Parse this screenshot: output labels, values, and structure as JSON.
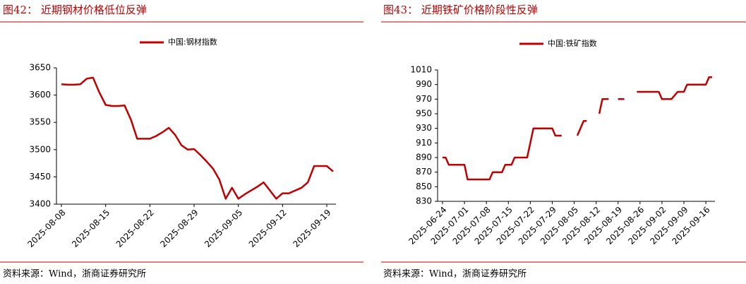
{
  "chart_data": [
    {
      "type": "line",
      "title": "图42：  近期钢材价格低位反弹",
      "source": "资料来源：Wind，浙商证券研究所",
      "x": [
        "2025-08-08",
        "2025-08-09",
        "2025-08-10",
        "2025-08-11",
        "2025-08-12",
        "2025-08-13",
        "2025-08-14",
        "2025-08-15",
        "2025-08-16",
        "2025-08-17",
        "2025-08-18",
        "2025-08-19",
        "2025-08-20",
        "2025-08-21",
        "2025-08-22",
        "2025-08-23",
        "2025-08-24",
        "2025-08-25",
        "2025-08-26",
        "2025-08-27",
        "2025-08-28",
        "2025-08-29",
        "2025-08-30",
        "2025-08-31",
        "2025-09-01",
        "2025-09-02",
        "2025-09-03",
        "2025-09-04",
        "2025-09-05",
        "2025-09-06",
        "2025-09-07",
        "2025-09-08",
        "2025-09-09",
        "2025-09-10",
        "2025-09-11",
        "2025-09-12",
        "2025-09-13",
        "2025-09-14",
        "2025-09-15",
        "2025-09-16",
        "2025-09-17",
        "2025-09-18",
        "2025-09-19",
        "2025-09-20"
      ],
      "series": [
        {
          "name": "中国:钢材指数",
          "color": "#c00000",
          "values": [
            3620,
            3619,
            3619,
            3620,
            3630,
            3632,
            3605,
            3582,
            3580,
            3580,
            3581,
            3555,
            3520,
            3520,
            3520,
            3525,
            3532,
            3540,
            3527,
            3508,
            3500,
            3501,
            3490,
            3478,
            3465,
            3445,
            3410,
            3430,
            3410,
            3418,
            3425,
            3432,
            3440,
            3425,
            3410,
            3420,
            3420,
            3425,
            3430,
            3440,
            3470,
            3470,
            3470,
            3460
          ]
        }
      ],
      "xlim": [
        "2025-08-08",
        "2025-09-20"
      ],
      "xticks": [
        "2025-08-08",
        "2025-08-15",
        "2025-08-22",
        "2025-08-29",
        "2025-09-05",
        "2025-09-12",
        "2025-09-19"
      ],
      "ylim": [
        3400,
        3650
      ],
      "yticks": [
        3400,
        3450,
        3500,
        3550,
        3600,
        3650
      ],
      "legend": "top"
    },
    {
      "type": "line",
      "title": "图43：  近期铁矿价格阶段性反弹",
      "source": "资料来源：Wind，浙商证券研究所",
      "x": [
        "2025-06-24",
        "2025-06-25",
        "2025-06-26",
        "2025-06-27",
        "2025-06-28",
        "2025-06-29",
        "2025-06-30",
        "2025-07-01",
        "2025-07-02",
        "2025-07-03",
        "2025-07-04",
        "2025-07-05",
        "2025-07-06",
        "2025-07-07",
        "2025-07-08",
        "2025-07-09",
        "2025-07-10",
        "2025-07-11",
        "2025-07-12",
        "2025-07-13",
        "2025-07-14",
        "2025-07-15",
        "2025-07-16",
        "2025-07-17",
        "2025-07-18",
        "2025-07-19",
        "2025-07-20",
        "2025-07-21",
        "2025-07-22",
        "2025-07-23",
        "2025-07-24",
        "2025-07-25",
        "2025-07-26",
        "2025-07-27",
        "2025-07-28",
        "2025-07-29",
        "2025-07-30",
        "2025-07-31",
        "2025-08-01",
        "2025-08-02",
        "2025-08-03",
        "2025-08-04",
        "2025-08-05",
        "2025-08-06",
        "2025-08-07",
        "2025-08-08",
        "2025-08-09",
        "2025-08-10",
        "2025-08-11",
        "2025-08-12",
        "2025-08-13",
        "2025-08-14",
        "2025-08-15",
        "2025-08-16",
        "2025-08-17",
        "2025-08-18",
        "2025-08-19",
        "2025-08-20",
        "2025-08-21",
        "2025-08-22",
        "2025-08-23",
        "2025-08-24",
        "2025-08-25",
        "2025-08-26",
        "2025-08-27",
        "2025-08-28",
        "2025-08-29",
        "2025-08-30",
        "2025-08-31",
        "2025-09-01",
        "2025-09-02",
        "2025-09-03",
        "2025-09-04",
        "2025-09-05",
        "2025-09-06",
        "2025-09-07",
        "2025-09-08",
        "2025-09-09",
        "2025-09-10",
        "2025-09-11",
        "2025-09-12",
        "2025-09-13",
        "2025-09-14",
        "2025-09-15",
        "2025-09-16",
        "2025-09-17",
        "2025-09-18"
      ],
      "series": [
        {
          "name": "中国:铁矿指数",
          "color": "#c00000",
          "values": [
            890,
            890,
            880,
            880,
            880,
            880,
            880,
            880,
            860,
            860,
            860,
            860,
            860,
            860,
            860,
            860,
            870,
            870,
            870,
            870,
            880,
            880,
            880,
            890,
            890,
            890,
            890,
            890,
            910,
            930,
            930,
            930,
            930,
            930,
            930,
            930,
            920,
            920,
            920,
            null,
            null,
            null,
            null,
            920,
            930,
            940,
            940,
            null,
            null,
            null,
            950,
            970,
            970,
            970,
            null,
            null,
            970,
            970,
            970,
            null,
            null,
            null,
            980,
            980,
            980,
            980,
            980,
            980,
            980,
            980,
            970,
            970,
            970,
            970,
            975,
            980,
            980,
            980,
            990,
            990,
            990,
            990,
            990,
            990,
            990,
            1000,
            1000
          ]
        }
      ],
      "xlim": [
        "2025-06-24",
        "2025-09-18"
      ],
      "xticks": [
        "2025-06-24",
        "2025-07-01",
        "2025-07-08",
        "2025-07-15",
        "2025-07-22",
        "2025-07-29",
        "2025-08-05",
        "2025-08-12",
        "2025-08-19",
        "2025-08-26",
        "2025-09-02",
        "2025-09-09",
        "2025-09-16"
      ],
      "ylim": [
        830,
        1010
      ],
      "yticks": [
        830,
        850,
        870,
        890,
        910,
        930,
        950,
        970,
        990,
        1010
      ],
      "legend": "top"
    }
  ]
}
